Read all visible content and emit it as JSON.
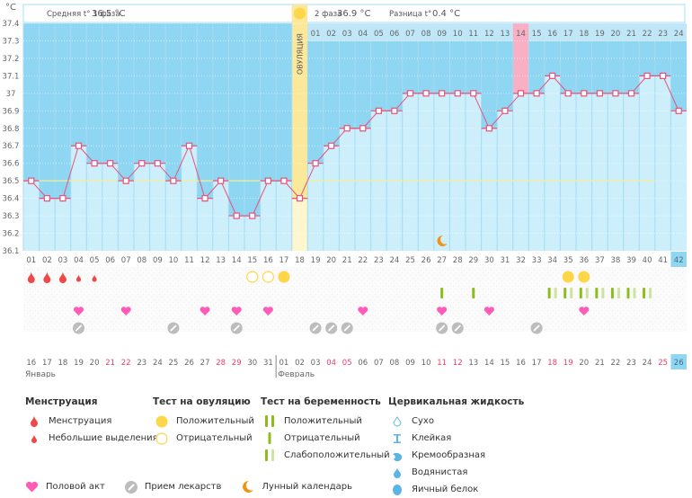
{
  "chart_data": {
    "type": "line",
    "unit_label": "°C",
    "yticks": [
      "37.4",
      "37.3",
      "37.2",
      "37.1",
      "37",
      "36.9",
      "36.8",
      "36.7",
      "36.6",
      "36.5",
      "36.4",
      "36.3",
      "36.2",
      "36.1"
    ],
    "ylim": [
      36.1,
      37.4
    ],
    "cover_line": 36.5,
    "cycle_days": [
      "01",
      "02",
      "03",
      "04",
      "05",
      "06",
      "07",
      "08",
      "09",
      "10",
      "11",
      "12",
      "13",
      "14",
      "15",
      "16",
      "17",
      "18",
      "19",
      "20",
      "21",
      "22",
      "23",
      "24",
      "25",
      "26",
      "27",
      "28",
      "29",
      "30",
      "31",
      "32",
      "33",
      "34",
      "35",
      "36",
      "37",
      "38",
      "39",
      "40",
      "41",
      "42"
    ],
    "temperatures": [
      36.5,
      36.4,
      36.4,
      36.7,
      36.6,
      36.6,
      36.5,
      36.6,
      36.6,
      36.5,
      36.7,
      36.4,
      36.5,
      36.3,
      36.3,
      36.5,
      36.5,
      36.4,
      36.6,
      36.7,
      36.8,
      36.8,
      36.9,
      36.9,
      37.0,
      37.0,
      37.0,
      37.0,
      37.0,
      36.8,
      36.9,
      37.0,
      37.0,
      37.1,
      37.0,
      37.0,
      37.0,
      37.0,
      37.0,
      37.1,
      37.1,
      36.9
    ],
    "ovulation_day": 18,
    "ovulation_label": "ОВУЛЯЦИЯ",
    "highlight_day_phase2": 14,
    "current_day": 42,
    "phase2_day_labels": [
      "01",
      "02",
      "03",
      "04",
      "05",
      "06",
      "07",
      "08",
      "09",
      "10",
      "11",
      "12",
      "13",
      "14",
      "15",
      "16",
      "17",
      "18",
      "19",
      "20",
      "21",
      "22",
      "23",
      "24"
    ],
    "calendar_dates": [
      "16",
      "17",
      "18",
      "19",
      "20",
      "21",
      "22",
      "23",
      "24",
      "25",
      "26",
      "27",
      "28",
      "29",
      "30",
      "31",
      "01",
      "02",
      "03",
      "04",
      "05",
      "06",
      "07",
      "08",
      "09",
      "10",
      "11",
      "12",
      "13",
      "14",
      "15",
      "16",
      "17",
      "18",
      "19",
      "20",
      "21",
      "22",
      "23",
      "24",
      "25",
      "26"
    ],
    "weekend_dates_idx": [
      5,
      6,
      12,
      13,
      19,
      20,
      26,
      27,
      33,
      34,
      40
    ],
    "months": [
      {
        "label": "Январь",
        "start": 0
      },
      {
        "label": "Февраль",
        "start": 16
      }
    ],
    "phase1_summary": {
      "label": "Средняя t° 1 фаза",
      "value": "36.5 °C"
    },
    "phase2_summary": {
      "label": "2 фаза",
      "value": "36.9 °C"
    },
    "difference": {
      "label": "Разница t°",
      "value": "0.4 °C"
    },
    "menstruation": {
      "1": "heavy",
      "2": "heavy",
      "3": "heavy",
      "4": "light",
      "5": "light"
    },
    "ovulation_tests": {
      "15": "negative",
      "16": "negative",
      "17": "positive",
      "35": "positive",
      "36": "positive"
    },
    "pregnancy_tests": {
      "27": "negative",
      "29": "negative",
      "34": "weak",
      "35": "weak",
      "36": "weak",
      "37": "weak",
      "38": "weak",
      "39": "weak",
      "40": "weak"
    },
    "intercourse_days": [
      4,
      7,
      12,
      14,
      16,
      22,
      27,
      30,
      36
    ],
    "medication_days": [
      4,
      10,
      14,
      19,
      20,
      21,
      27,
      28,
      33
    ],
    "moon_days": [
      27
    ]
  },
  "legend": {
    "menstruation": {
      "title": "Менструация",
      "items": [
        "Менструация",
        "Небольшие выделения"
      ]
    },
    "ovulation_test": {
      "title": "Тест на овуляцию",
      "items": [
        "Положительный",
        "Отрицательный"
      ]
    },
    "pregnancy_test": {
      "title": "Тест на беременность",
      "items": [
        "Положительный",
        "Отрицательный",
        "Слабоположительный"
      ]
    },
    "cervical_fluid": {
      "title": "Цервикальная жидкость",
      "items": [
        "Сухо",
        "Клейкая",
        "Кремообразная",
        "Водянистая",
        "Яичный белок"
      ]
    },
    "bottom": [
      "Половой акт",
      "Прием лекарств",
      "Лунный календарь"
    ]
  },
  "colors": {
    "sky": "#8fd6f2",
    "bar": "#cdeefb",
    "grid_line": "#a5dcf2",
    "temp_line": "#e8527a",
    "cover_line": "#f2ee9a",
    "ovulation": "#fbe89a",
    "highlight": "#f9afc4",
    "blood": "#f04848",
    "heart": "#ff5cb8",
    "pill": "#bdbdbd",
    "yellow": "#fdd64a",
    "green": "#8cbd1c",
    "light_green": "#cde3a2",
    "moon": "#f09413",
    "weekend": "#e83e6b",
    "fluid": "#5ab5e6"
  }
}
